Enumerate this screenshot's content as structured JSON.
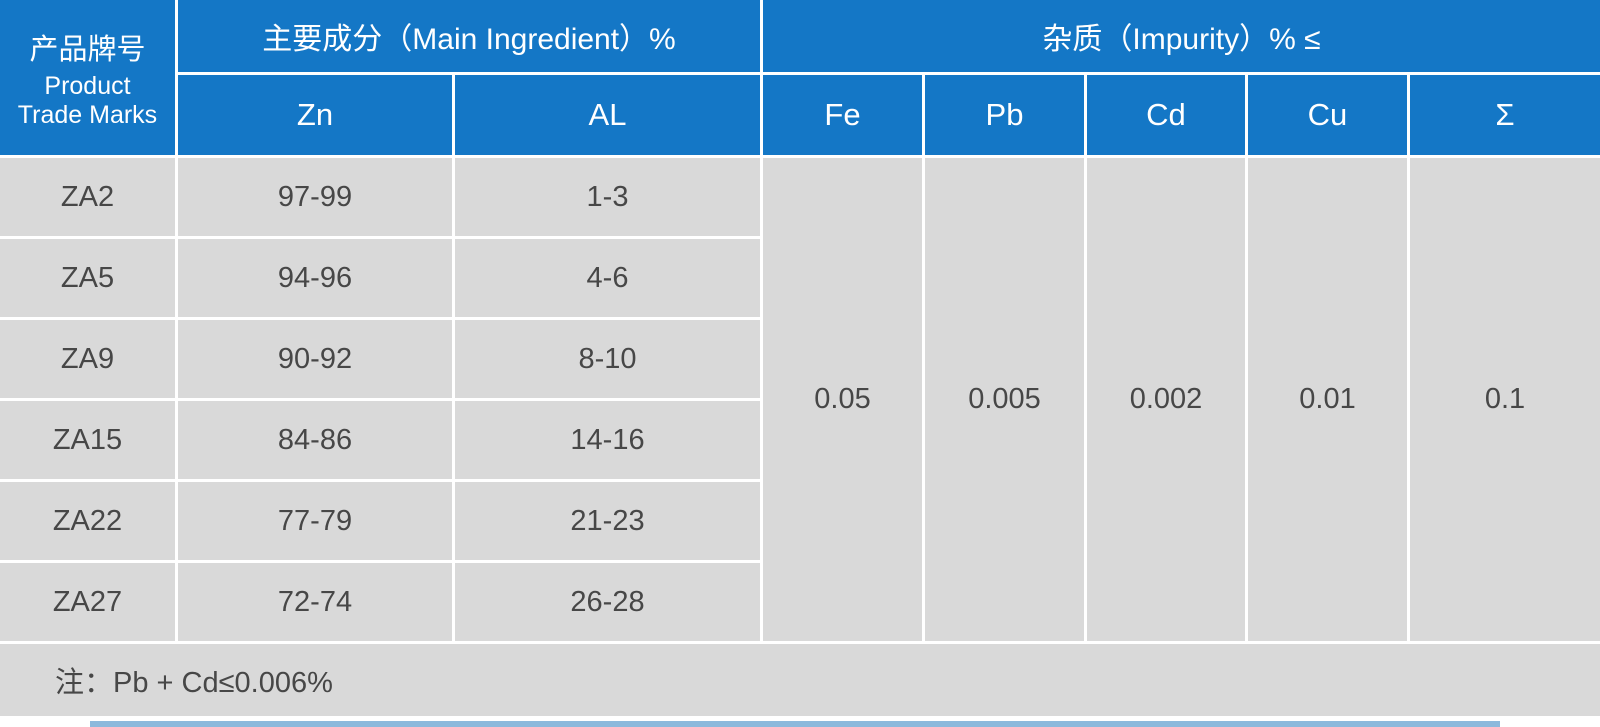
{
  "colors": {
    "header_blue": "#1477c6",
    "cell_gray": "#d9d9d9",
    "text_dark": "#474747",
    "divider_white": "#ffffff"
  },
  "table": {
    "header": {
      "product_zh": "产品牌号",
      "product_en_line1": "Product",
      "product_en_line2": "Trade Marks",
      "main_group": "主要成分（Main Ingredient）%",
      "impurity_group": "杂质（Impurity）% ≤",
      "col_zn": "Zn",
      "col_al": "AL",
      "col_fe": "Fe",
      "col_pb": "Pb",
      "col_cd": "Cd",
      "col_cu": "Cu",
      "col_sum": "Σ"
    },
    "rows": [
      {
        "trade_mark": "ZA2",
        "zn": "97-99",
        "al": "1-3"
      },
      {
        "trade_mark": "ZA5",
        "zn": "94-96",
        "al": "4-6"
      },
      {
        "trade_mark": "ZA9",
        "zn": "90-92",
        "al": "8-10"
      },
      {
        "trade_mark": "ZA15",
        "zn": "84-86",
        "al": "14-16"
      },
      {
        "trade_mark": "ZA22",
        "zn": "77-79",
        "al": "21-23"
      },
      {
        "trade_mark": "ZA27",
        "zn": "72-74",
        "al": "26-28"
      }
    ],
    "impurity_limits": {
      "fe": "0.05",
      "pb": "0.005",
      "cd": "0.002",
      "cu": "0.01",
      "sum": "0.1"
    },
    "note": "注：Pb + Cd≤0.006%"
  }
}
